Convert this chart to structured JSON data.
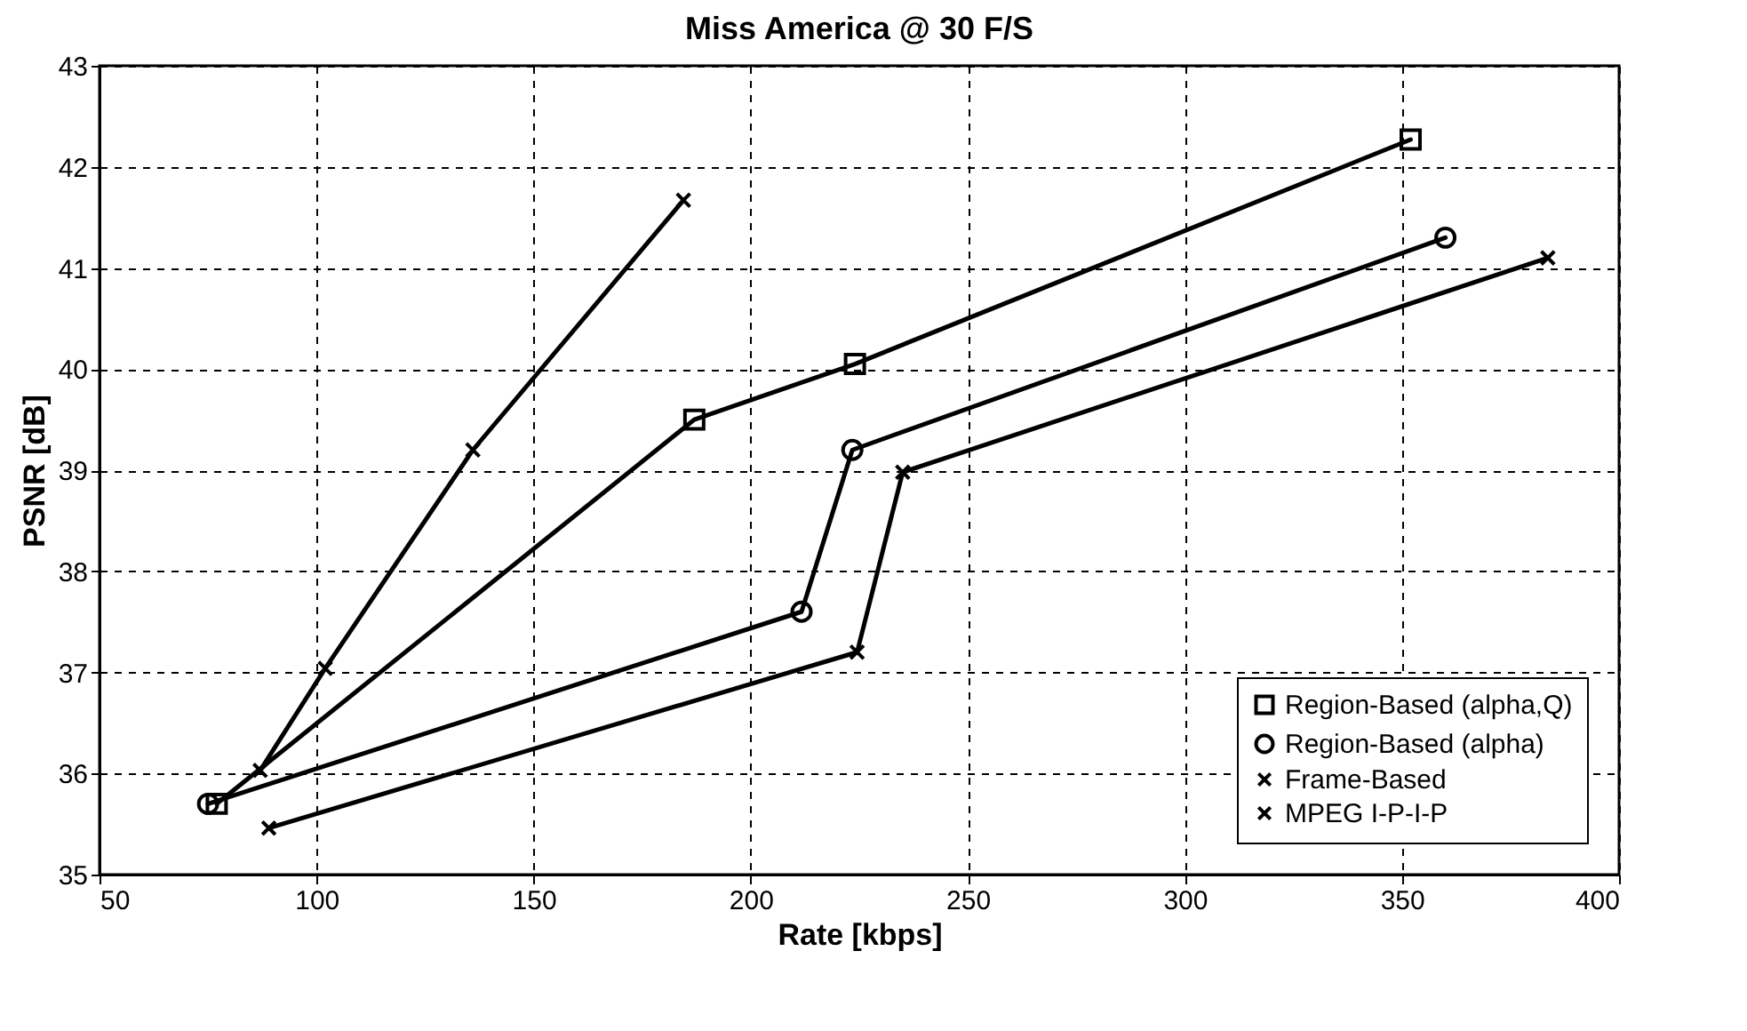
{
  "chart_data": {
    "type": "line",
    "title": "Miss America @ 30 F/S",
    "xlabel": "Rate [kbps]",
    "ylabel": "PSNR [dB]",
    "xlim": [
      50,
      400
    ],
    "xticks": [
      50,
      100,
      150,
      200,
      250,
      300,
      350,
      400
    ],
    "ylim": [
      35,
      43
    ],
    "yticks": [
      35,
      36,
      37,
      38,
      39,
      40,
      41,
      42,
      43
    ],
    "grid": true,
    "legend": "bottom right",
    "line_style": "solid",
    "series": [
      {
        "name": "Region-Based (alpha,Q)",
        "color": "#000000",
        "marker": "square",
        "x": [
          77,
          187,
          224,
          352
        ],
        "values": [
          35.7,
          39.5,
          40.05,
          42.27
        ]
      },
      {
        "name": "Region-Based (alpha)",
        "color": "#000000",
        "marker": "circle",
        "x": [
          75,
          211.7,
          223.4,
          360
        ],
        "values": [
          35.7,
          37.6,
          39.2,
          41.3
        ]
      },
      {
        "name": "Frame-Based",
        "color": "#000000",
        "marker": "cross",
        "x": [
          89,
          224.5,
          235,
          383.6
        ],
        "values": [
          35.46,
          37.2,
          38.98,
          41.1
        ]
      },
      {
        "name": "MPEG I-P-I-P",
        "color": "#000000",
        "marker": "cross",
        "x": [
          87,
          102,
          136,
          184.5
        ],
        "values": [
          36.03,
          37.04,
          39.2,
          41.67
        ]
      }
    ]
  }
}
